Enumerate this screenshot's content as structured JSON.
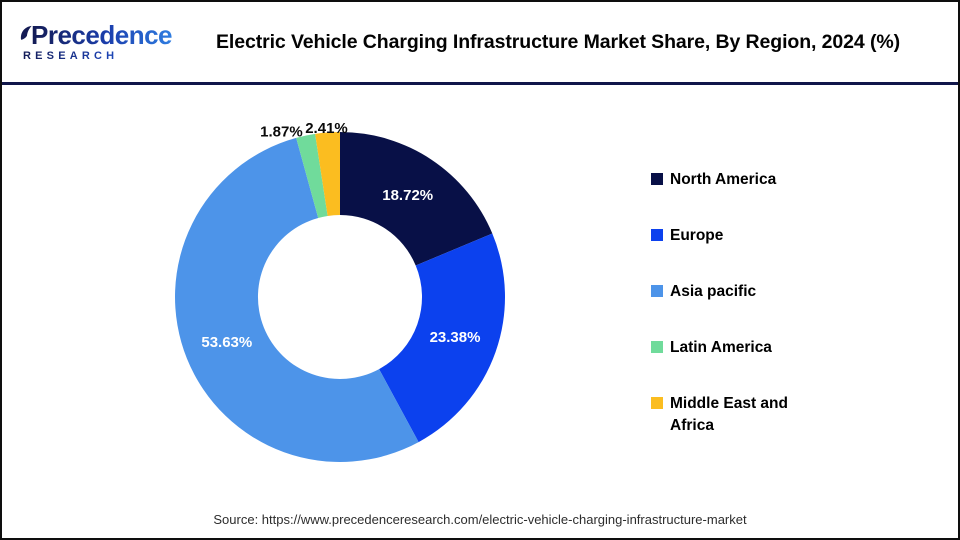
{
  "header": {
    "logo": {
      "line1": "Precedence",
      "line2": "RESEARCH"
    },
    "title": "Electric Vehicle Charging Infrastructure Market Share, By Region, 2024 (%)"
  },
  "chart_data": {
    "type": "pie",
    "subtype": "donut",
    "title": "Electric Vehicle Charging Infrastructure Market Share, By Region, 2024 (%)",
    "categories": [
      "North America",
      "Europe",
      "Asia pacific",
      "Latin America",
      "Middle East and Africa"
    ],
    "values": [
      18.72,
      23.38,
      53.63,
      1.87,
      2.41
    ],
    "labels": [
      "18.72%",
      "23.38%",
      "53.63%",
      "1.87%",
      "2.41%"
    ],
    "unit": "%",
    "colors": [
      "#081047",
      "#0c41ee",
      "#4d94e9",
      "#70db9b",
      "#fbbd20"
    ],
    "legend_position": "right",
    "start_angle_deg": 0,
    "direction": "clockwise"
  },
  "footer": {
    "source": "Source: https://www.precedenceresearch.com/electric-vehicle-charging-infrastructure-market"
  }
}
